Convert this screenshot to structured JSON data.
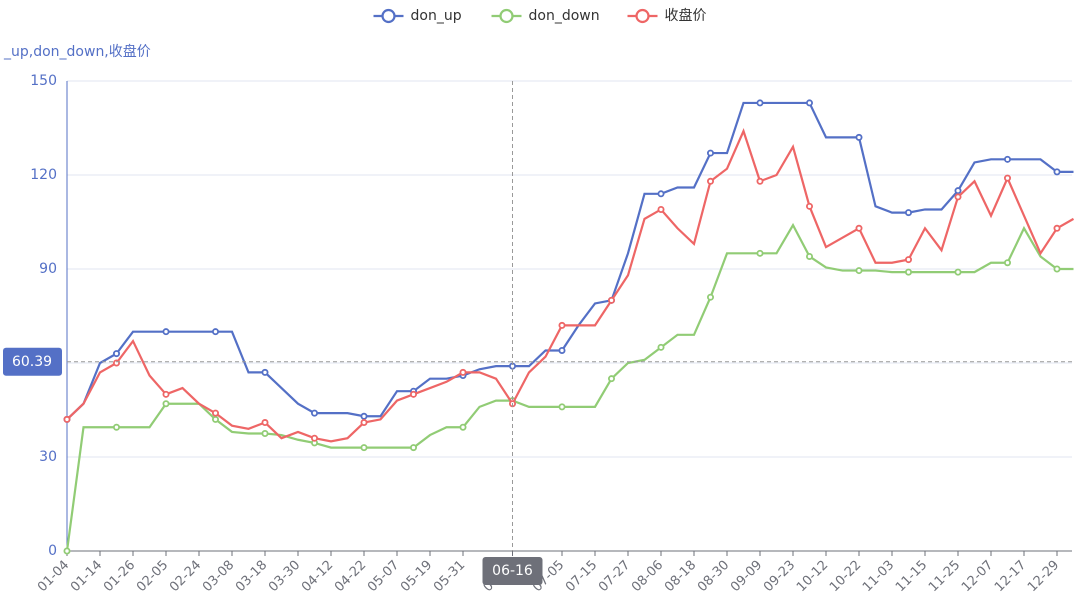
{
  "chart_data": {
    "type": "line",
    "y_axis_label": "_up,don_down,收盘价",
    "categories": [
      "01-04",
      null,
      "01-14",
      null,
      "01-26",
      null,
      "02-05",
      null,
      "02-24",
      null,
      "03-08",
      null,
      "03-18",
      null,
      "03-30",
      null,
      "04-12",
      null,
      "04-22",
      null,
      "05-07",
      null,
      "05-19",
      null,
      "05-31",
      null,
      null,
      "06-16",
      null,
      null,
      "07-05",
      null,
      "07-15",
      null,
      "07-27",
      null,
      "08-06",
      null,
      "08-18",
      null,
      "08-30",
      null,
      "09-09",
      null,
      "09-23",
      null,
      "10-12",
      null,
      "10-22",
      null,
      "11-03",
      null,
      "11-15",
      null,
      "11-25",
      null,
      "12-07",
      null,
      "12-17",
      null,
      "12-29",
      null
    ],
    "series": [
      {
        "name": "don_up",
        "color": "#5470c6",
        "values": [
          42,
          47,
          60,
          63,
          70,
          70,
          70,
          70,
          70,
          70,
          70,
          57,
          57,
          52,
          47,
          44,
          44,
          44,
          43,
          43,
          51,
          51,
          55,
          55,
          56,
          58,
          59,
          59,
          59,
          64,
          64,
          72,
          79,
          80,
          95,
          114,
          114,
          116,
          116,
          127,
          127,
          143,
          143,
          143,
          143,
          143,
          132,
          132,
          132,
          110,
          108,
          108,
          109,
          109,
          115,
          124,
          125,
          125,
          125,
          125,
          121,
          121
        ]
      },
      {
        "name": "don_down",
        "color": "#91cc75",
        "values": [
          0,
          39.5,
          39.5,
          39.5,
          39.5,
          39.5,
          47,
          47,
          47,
          42,
          38,
          37.5,
          37.5,
          37,
          35.5,
          34.5,
          33,
          33,
          33,
          33,
          33,
          33,
          37,
          39.5,
          39.5,
          46,
          48,
          48,
          46,
          46,
          46,
          46,
          46,
          55,
          60,
          61,
          65,
          69,
          69,
          81,
          95,
          95,
          95,
          95,
          104,
          94,
          90.5,
          89.5,
          89.5,
          89.5,
          89,
          89,
          89,
          89,
          89,
          89,
          92,
          92,
          103,
          94,
          90,
          90
        ]
      },
      {
        "name": "收盘价",
        "color": "#ee6666",
        "values": [
          42,
          47,
          57,
          60,
          67,
          56,
          50,
          52,
          47,
          44,
          40,
          39,
          41,
          36,
          38,
          36,
          35,
          36,
          41,
          42,
          48,
          50,
          52,
          54,
          57,
          57,
          55,
          47,
          57,
          62,
          72,
          72,
          72,
          80,
          88,
          106,
          109,
          103,
          98,
          118,
          122,
          134,
          118,
          120,
          129,
          110,
          97,
          100,
          103,
          92,
          92,
          93,
          103,
          96,
          113,
          118,
          107,
          119,
          107,
          95,
          103,
          106
        ]
      }
    ],
    "ylim": [
      0,
      150
    ],
    "yticks": [
      0,
      30,
      60,
      90,
      120,
      150
    ],
    "grid": true,
    "legend": "top",
    "axis_pointer": {
      "x": "06-16",
      "y": 60.39
    }
  }
}
